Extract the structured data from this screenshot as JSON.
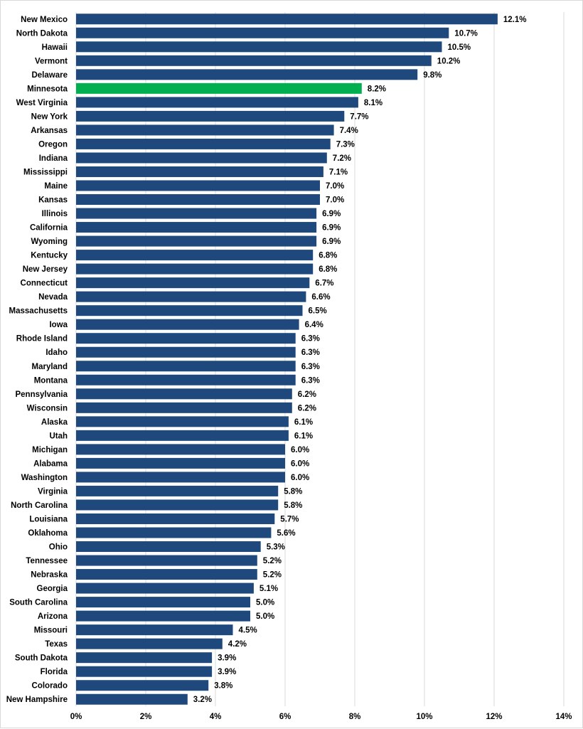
{
  "chart_data": {
    "type": "bar",
    "orientation": "horizontal",
    "title": "",
    "xlabel": "",
    "ylabel": "",
    "xlim": [
      0,
      14
    ],
    "x_ticks": [
      "0%",
      "2%",
      "4%",
      "6%",
      "8%",
      "10%",
      "12%",
      "14%"
    ],
    "x_tick_values": [
      0,
      2,
      4,
      6,
      8,
      10,
      12,
      14
    ],
    "grid": "vertical",
    "legend": "none",
    "colors": {
      "default": "#1f497d",
      "highlight": "#00b050"
    },
    "highlight": "Minnesota",
    "value_format": "percent, 1 decimal",
    "categories": [
      "New Mexico",
      "North Dakota",
      "Hawaii",
      "Vermont",
      "Delaware",
      "Minnesota",
      "West Virginia",
      "New York",
      "Arkansas",
      "Oregon",
      "Indiana",
      "Mississippi",
      "Maine",
      "Kansas",
      "Illinois",
      "California",
      "Wyoming",
      "Kentucky",
      "New Jersey",
      "Connecticut",
      "Nevada",
      "Massachusetts",
      "Iowa",
      "Rhode Island",
      "Idaho",
      "Maryland",
      "Montana",
      "Pennsylvania",
      "Wisconsin",
      "Alaska",
      "Utah",
      "Michigan",
      "Alabama",
      "Washington",
      "Virginia",
      "North Carolina",
      "Louisiana",
      "Oklahoma",
      "Ohio",
      "Tennessee",
      "Nebraska",
      "Georgia",
      "South Carolina",
      "Arizona",
      "Missouri",
      "Texas",
      "South Dakota",
      "Florida",
      "Colorado",
      "New Hampshire"
    ],
    "values": [
      12.1,
      10.7,
      10.5,
      10.2,
      9.8,
      8.2,
      8.1,
      7.7,
      7.4,
      7.3,
      7.2,
      7.1,
      7.0,
      7.0,
      6.9,
      6.9,
      6.9,
      6.8,
      6.8,
      6.7,
      6.6,
      6.5,
      6.4,
      6.3,
      6.3,
      6.3,
      6.3,
      6.2,
      6.2,
      6.1,
      6.1,
      6.0,
      6.0,
      6.0,
      5.8,
      5.8,
      5.7,
      5.6,
      5.3,
      5.2,
      5.2,
      5.1,
      5.0,
      5.0,
      4.5,
      4.2,
      3.9,
      3.9,
      3.8,
      3.2
    ],
    "data_labels": [
      "12.1%",
      "10.7%",
      "10.5%",
      "10.2%",
      "9.8%",
      "8.2%",
      "8.1%",
      "7.7%",
      "7.4%",
      "7.3%",
      "7.2%",
      "7.1%",
      "7.0%",
      "7.0%",
      "6.9%",
      "6.9%",
      "6.9%",
      "6.8%",
      "6.8%",
      "6.7%",
      "6.6%",
      "6.5%",
      "6.4%",
      "6.3%",
      "6.3%",
      "6.3%",
      "6.3%",
      "6.2%",
      "6.2%",
      "6.1%",
      "6.1%",
      "6.0%",
      "6.0%",
      "6.0%",
      "5.8%",
      "5.8%",
      "5.7%",
      "5.6%",
      "5.3%",
      "5.2%",
      "5.2%",
      "5.1%",
      "5.0%",
      "5.0%",
      "4.5%",
      "4.2%",
      "3.9%",
      "3.9%",
      "3.8%",
      "3.2%"
    ]
  }
}
